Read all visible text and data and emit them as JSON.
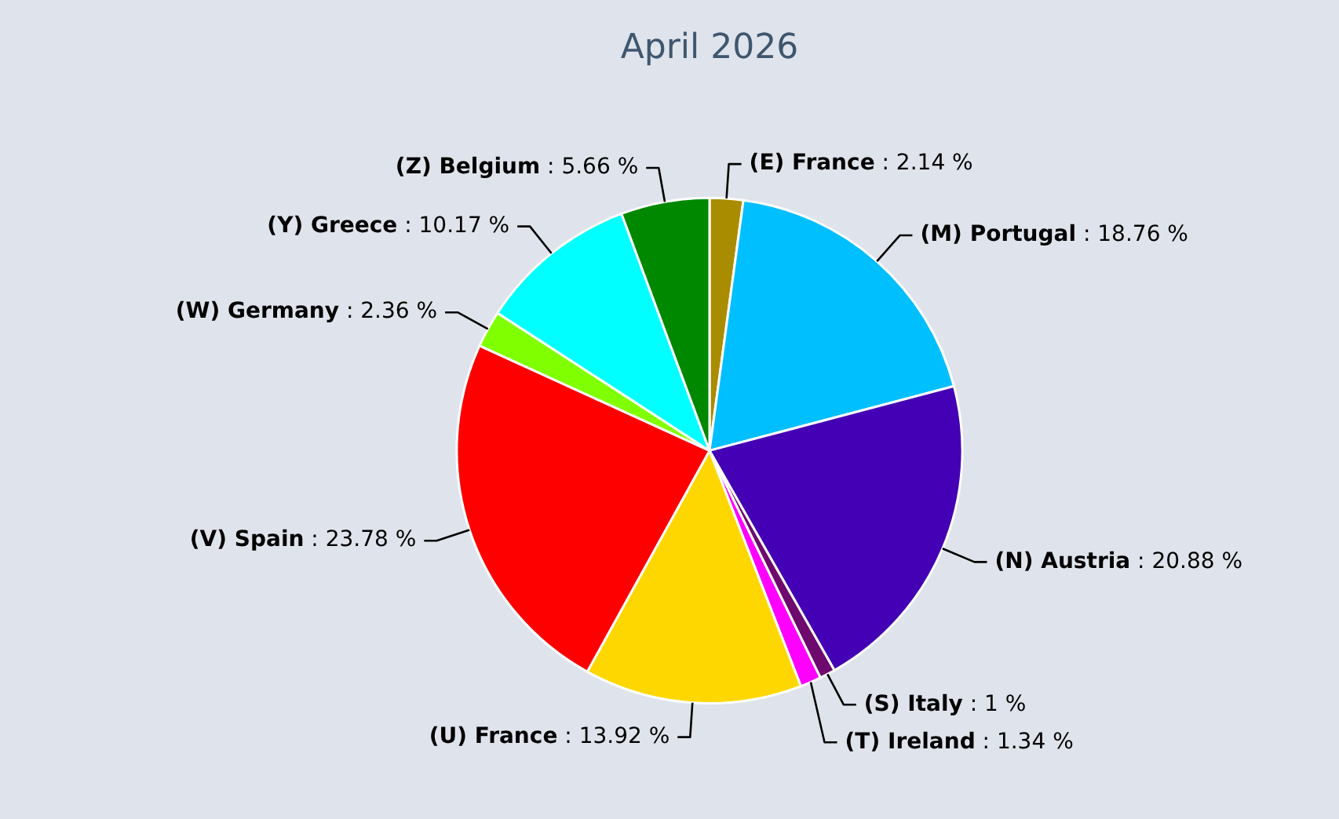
{
  "chart_data": {
    "type": "pie",
    "title": "April 2026",
    "categories": [
      "(E) France",
      "(M) Portugal",
      "(N) Austria",
      "(S) Italy",
      "(T) Ireland",
      "(U) France",
      "(V) Spain",
      "(W) Germany",
      "(Y) Greece",
      "(Z) Belgium"
    ],
    "values": [
      2.14,
      18.76,
      20.88,
      1,
      1.34,
      13.92,
      23.78,
      2.36,
      10.17,
      5.66
    ],
    "value_labels": [
      ": 2.14 %",
      ": 18.76 %",
      ": 20.88 %",
      ": 1 %",
      ": 1.34 %",
      ": 13.92 %",
      ": 23.78 %",
      ": 2.36 %",
      ": 10.17 %",
      ": 5.66 %"
    ],
    "colors": [
      "#aa8c00",
      "#00bfff",
      "#4400b4",
      "#6e0a6e",
      "#ff00ff",
      "#ffd700",
      "#ff0000",
      "#80ff00",
      "#00ffff",
      "#008800"
    ],
    "legend": false
  }
}
